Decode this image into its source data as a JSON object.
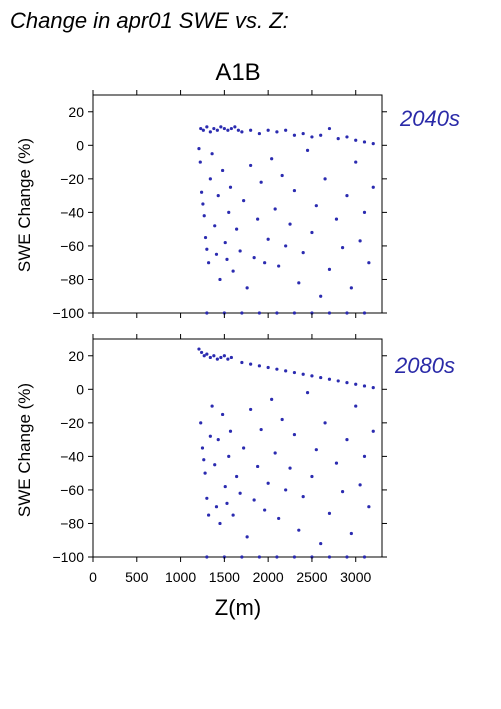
{
  "page_title": "Change in apr01 SWE vs. Z:",
  "scenario": "A1B",
  "colors": {
    "points": "#2b2bb0",
    "label": "#2a2aa8",
    "axis": "#000000"
  },
  "chart_data": [
    {
      "type": "scatter",
      "period_label": "2040s",
      "ylabel": "SWE Change (%)",
      "xlabel": "",
      "xlim": [
        0,
        3300
      ],
      "ylim": [
        -100,
        30
      ],
      "xticks": [
        0,
        500,
        1000,
        1500,
        2000,
        2500,
        3000
      ],
      "yticks": [
        20,
        0,
        -20,
        -40,
        -60,
        -80,
        -100
      ],
      "ytick_labels": [
        "20",
        "0",
        "−20",
        "−40",
        "−60",
        "−80",
        "−100"
      ],
      "x_range_of_points": [
        1200,
        3200
      ],
      "cluster_top_y": [
        7,
        12
      ],
      "cluster_bottom_y": [
        -101,
        -99
      ],
      "points": [
        [
          1230,
          10
        ],
        [
          1260,
          9
        ],
        [
          1300,
          11
        ],
        [
          1340,
          8
        ],
        [
          1380,
          10
        ],
        [
          1420,
          9
        ],
        [
          1460,
          11
        ],
        [
          1500,
          10
        ],
        [
          1540,
          9
        ],
        [
          1580,
          10
        ],
        [
          1620,
          11
        ],
        [
          1660,
          9
        ],
        [
          1210,
          -2
        ],
        [
          1225,
          -10
        ],
        [
          1240,
          -28
        ],
        [
          1255,
          -35
        ],
        [
          1270,
          -42
        ],
        [
          1285,
          -55
        ],
        [
          1300,
          -62
        ],
        [
          1320,
          -70
        ],
        [
          1340,
          -20
        ],
        [
          1360,
          -5
        ],
        [
          1390,
          -48
        ],
        [
          1410,
          -65
        ],
        [
          1430,
          -30
        ],
        [
          1450,
          -80
        ],
        [
          1480,
          -15
        ],
        [
          1510,
          -58
        ],
        [
          1530,
          -68
        ],
        [
          1550,
          -40
        ],
        [
          1570,
          -25
        ],
        [
          1600,
          -75
        ],
        [
          1640,
          -50
        ],
        [
          1680,
          -63
        ],
        [
          1720,
          -33
        ],
        [
          1760,
          -85
        ],
        [
          1800,
          -12
        ],
        [
          1840,
          -67
        ],
        [
          1880,
          -44
        ],
        [
          1920,
          -22
        ],
        [
          1960,
          -70
        ],
        [
          2000,
          -56
        ],
        [
          2040,
          -8
        ],
        [
          2080,
          -38
        ],
        [
          2120,
          -72
        ],
        [
          2160,
          -18
        ],
        [
          2200,
          -60
        ],
        [
          2250,
          -47
        ],
        [
          2300,
          -27
        ],
        [
          2350,
          -82
        ],
        [
          2400,
          -64
        ],
        [
          2450,
          -3
        ],
        [
          2500,
          -52
        ],
        [
          2550,
          -36
        ],
        [
          2600,
          -90
        ],
        [
          2650,
          -20
        ],
        [
          2700,
          -74
        ],
        [
          2780,
          -44
        ],
        [
          2850,
          -61
        ],
        [
          2900,
          -30
        ],
        [
          2950,
          -85
        ],
        [
          3000,
          -10
        ],
        [
          3050,
          -57
        ],
        [
          3100,
          -40
        ],
        [
          3150,
          -70
        ],
        [
          3200,
          -25
        ],
        [
          1300,
          -100
        ],
        [
          1500,
          -100
        ],
        [
          1700,
          -100
        ],
        [
          1900,
          -100
        ],
        [
          2100,
          -100
        ],
        [
          2300,
          -100
        ],
        [
          2500,
          -100
        ],
        [
          2700,
          -100
        ],
        [
          2900,
          -100
        ],
        [
          3100,
          -100
        ],
        [
          1700,
          8
        ],
        [
          1800,
          9
        ],
        [
          1900,
          7
        ],
        [
          2000,
          9
        ],
        [
          2100,
          8
        ],
        [
          2200,
          9
        ],
        [
          2300,
          6
        ],
        [
          2400,
          7
        ],
        [
          2500,
          5
        ],
        [
          2600,
          6
        ],
        [
          2700,
          10
        ],
        [
          2800,
          4
        ],
        [
          2900,
          5
        ],
        [
          3000,
          3
        ],
        [
          3100,
          2
        ],
        [
          3200,
          1
        ]
      ]
    },
    {
      "type": "scatter",
      "period_label": "2080s",
      "ylabel": "SWE Change (%)",
      "xlabel": "Z(m)",
      "xlim": [
        0,
        3300
      ],
      "ylim": [
        -100,
        30
      ],
      "xticks": [
        0,
        500,
        1000,
        1500,
        2000,
        2500,
        3000
      ],
      "xtick_labels": [
        "0",
        "500",
        "1000",
        "1500",
        "2000",
        "2500",
        "3000"
      ],
      "yticks": [
        20,
        0,
        -20,
        -40,
        -60,
        -80,
        -100
      ],
      "ytick_labels": [
        "20",
        "0",
        "−20",
        "−40",
        "−60",
        "−80",
        "−100"
      ],
      "x_range_of_points": [
        1200,
        3200
      ],
      "cluster_top_y": [
        15,
        25
      ],
      "cluster_bottom_y": [
        -101,
        -99
      ],
      "points": [
        [
          1210,
          24
        ],
        [
          1240,
          22
        ],
        [
          1270,
          20
        ],
        [
          1300,
          21
        ],
        [
          1340,
          19
        ],
        [
          1380,
          20
        ],
        [
          1420,
          18
        ],
        [
          1460,
          19
        ],
        [
          1500,
          20
        ],
        [
          1540,
          18
        ],
        [
          1580,
          19
        ],
        [
          1230,
          -20
        ],
        [
          1250,
          -35
        ],
        [
          1265,
          -42
        ],
        [
          1280,
          -50
        ],
        [
          1300,
          -65
        ],
        [
          1320,
          -75
        ],
        [
          1340,
          -28
        ],
        [
          1360,
          -10
        ],
        [
          1390,
          -45
        ],
        [
          1410,
          -70
        ],
        [
          1430,
          -30
        ],
        [
          1450,
          -80
        ],
        [
          1480,
          -15
        ],
        [
          1510,
          -58
        ],
        [
          1530,
          -68
        ],
        [
          1550,
          -40
        ],
        [
          1570,
          -25
        ],
        [
          1600,
          -75
        ],
        [
          1640,
          -52
        ],
        [
          1680,
          -62
        ],
        [
          1720,
          -35
        ],
        [
          1760,
          -88
        ],
        [
          1800,
          -12
        ],
        [
          1840,
          -66
        ],
        [
          1880,
          -46
        ],
        [
          1920,
          -24
        ],
        [
          1960,
          -72
        ],
        [
          2000,
          -56
        ],
        [
          2040,
          -6
        ],
        [
          2080,
          -38
        ],
        [
          2120,
          -77
        ],
        [
          2160,
          -18
        ],
        [
          2200,
          -60
        ],
        [
          2250,
          -47
        ],
        [
          2300,
          -27
        ],
        [
          2350,
          -84
        ],
        [
          2400,
          -64
        ],
        [
          2450,
          -2
        ],
        [
          2500,
          -52
        ],
        [
          2550,
          -36
        ],
        [
          2600,
          -92
        ],
        [
          2650,
          -20
        ],
        [
          2700,
          -74
        ],
        [
          2780,
          -44
        ],
        [
          2850,
          -61
        ],
        [
          2900,
          -30
        ],
        [
          2950,
          -86
        ],
        [
          3000,
          -10
        ],
        [
          3050,
          -57
        ],
        [
          3100,
          -40
        ],
        [
          3150,
          -70
        ],
        [
          3200,
          -25
        ],
        [
          1300,
          -100
        ],
        [
          1500,
          -100
        ],
        [
          1700,
          -100
        ],
        [
          1900,
          -100
        ],
        [
          2100,
          -100
        ],
        [
          2300,
          -100
        ],
        [
          2500,
          -100
        ],
        [
          2700,
          -100
        ],
        [
          2900,
          -100
        ],
        [
          3100,
          -100
        ],
        [
          1700,
          16
        ],
        [
          1800,
          15
        ],
        [
          1900,
          14
        ],
        [
          2000,
          13
        ],
        [
          2100,
          12
        ],
        [
          2200,
          11
        ],
        [
          2300,
          10
        ],
        [
          2400,
          9
        ],
        [
          2500,
          8
        ],
        [
          2600,
          7
        ],
        [
          2700,
          6
        ],
        [
          2800,
          5
        ],
        [
          2900,
          4
        ],
        [
          3000,
          3
        ],
        [
          3100,
          2
        ],
        [
          3200,
          1
        ]
      ]
    }
  ]
}
